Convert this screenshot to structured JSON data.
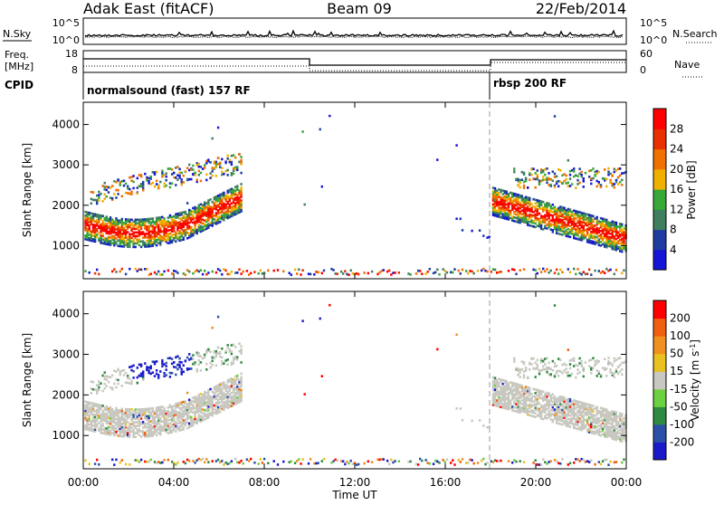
{
  "header": {
    "station": "Adak East (fitACF)",
    "beam": "Beam 09",
    "date": "22/Feb/2014"
  },
  "nsky_panel": {
    "left_label": "N.Sky",
    "right_label": "N.Search",
    "left_ticks": [
      "10^5",
      "10^0"
    ],
    "right_ticks": [
      "10^5",
      "10^0"
    ]
  },
  "freq_panel": {
    "left_label_1": "Freq.",
    "left_label_2": "[MHz]",
    "right_label": "Nave",
    "left_ticks": [
      "18",
      "8"
    ],
    "right_ticks": [
      "60",
      "0"
    ]
  },
  "cpid": {
    "label": "CPID",
    "mode_1": "normalsound (fast) 157 RF",
    "mode_2": "rbsp 200 RF"
  },
  "chart_data": [
    {
      "type": "heatmap",
      "name": "power",
      "ylabel": "Slant Range [km]",
      "yticks": [
        "1000",
        "2000",
        "3000",
        "4000"
      ],
      "colorbar_label": "Power [dB]",
      "colorbar_ticks": [
        "4",
        "8",
        "12",
        "16",
        "20",
        "24",
        "28"
      ],
      "colors": [
        "#1515d8",
        "#1f3da0",
        "#3f7f5f",
        "#38a838",
        "#f0b000",
        "#f07000",
        "#e83000",
        "#ff0000"
      ]
    },
    {
      "type": "heatmap",
      "name": "velocity",
      "ylabel": "Slant Range [km]",
      "yticks": [
        "1000",
        "2000",
        "3000",
        "4000"
      ],
      "colorbar_label": "Velocity [m s",
      "colorbar_label_sup": "-1",
      "colorbar_label_end": "]",
      "colorbar_ticks": [
        "200",
        "100",
        "50",
        "15",
        "-15",
        "-50",
        "-100",
        "-200"
      ],
      "colors": [
        "#1a1acc",
        "#2a50a8",
        "#2e8a40",
        "#6cd040",
        "#c8c8c0",
        "#e8c020",
        "#f09020",
        "#f06010",
        "#ff0000"
      ]
    }
  ],
  "time_axis": {
    "label": "Time UT",
    "ticks": [
      "00:00",
      "04:00",
      "08:00",
      "12:00",
      "16:00",
      "20:00",
      "00:00"
    ]
  }
}
